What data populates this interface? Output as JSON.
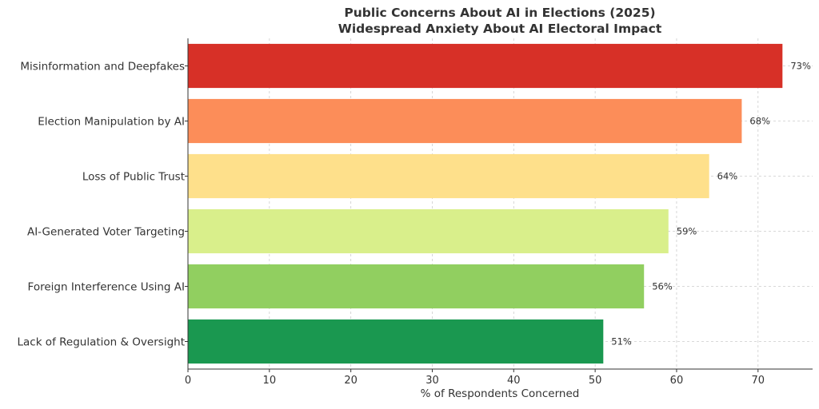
{
  "chart_data": {
    "type": "bar",
    "orientation": "horizontal",
    "title": "Public Concerns About AI in Elections (2025)",
    "subtitle": "Widespread Anxiety About AI Electoral Impact",
    "xlabel": "% of Respondents Concerned",
    "ylabel": "",
    "xlim": [
      0,
      76.7
    ],
    "xticks": [
      0,
      10,
      20,
      30,
      40,
      50,
      60,
      70
    ],
    "grid": true,
    "categories": [
      "Misinformation and Deepfakes",
      "Election Manipulation by AI",
      "Loss of Public Trust",
      "AI-Generated Voter Targeting",
      "Foreign Interference Using AI",
      "Lack of Regulation & Oversight"
    ],
    "values": [
      73,
      68,
      64,
      59,
      56,
      51
    ],
    "value_labels": [
      "73%",
      "68%",
      "64%",
      "59%",
      "56%",
      "51%"
    ],
    "colors": [
      "#d73027",
      "#fc8d59",
      "#fee08b",
      "#d9ef8b",
      "#91cf60",
      "#1a9850"
    ]
  }
}
